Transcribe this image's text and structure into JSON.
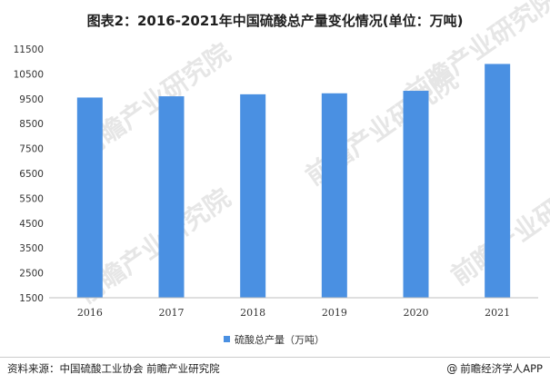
{
  "chart_data": {
    "type": "bar",
    "title": "图表2：2016-2021年中国硫酸总产量变化情况(单位：万吨)",
    "categories": [
      "2016",
      "2017",
      "2018",
      "2019",
      "2020",
      "2021"
    ],
    "series": [
      {
        "name": "硫酸总产量（万吨）",
        "values": [
          9550,
          9600,
          9680,
          9720,
          9820,
          10900
        ],
        "color": "#4a90e2"
      }
    ],
    "ylim": [
      1500,
      11500
    ],
    "yticks": [
      1500,
      2500,
      3500,
      4500,
      5500,
      6500,
      7500,
      8500,
      9500,
      10500,
      11500
    ],
    "xlabel": "",
    "ylabel": "",
    "grid": false,
    "legend_position": "bottom"
  },
  "footer": {
    "source": "资料来源：中国硫酸工业协会 前瞻产业研究院",
    "brand_prefix": "@",
    "brand": "前瞻经济学人APP"
  },
  "watermark": {
    "text": "前瞻产业研究院"
  }
}
